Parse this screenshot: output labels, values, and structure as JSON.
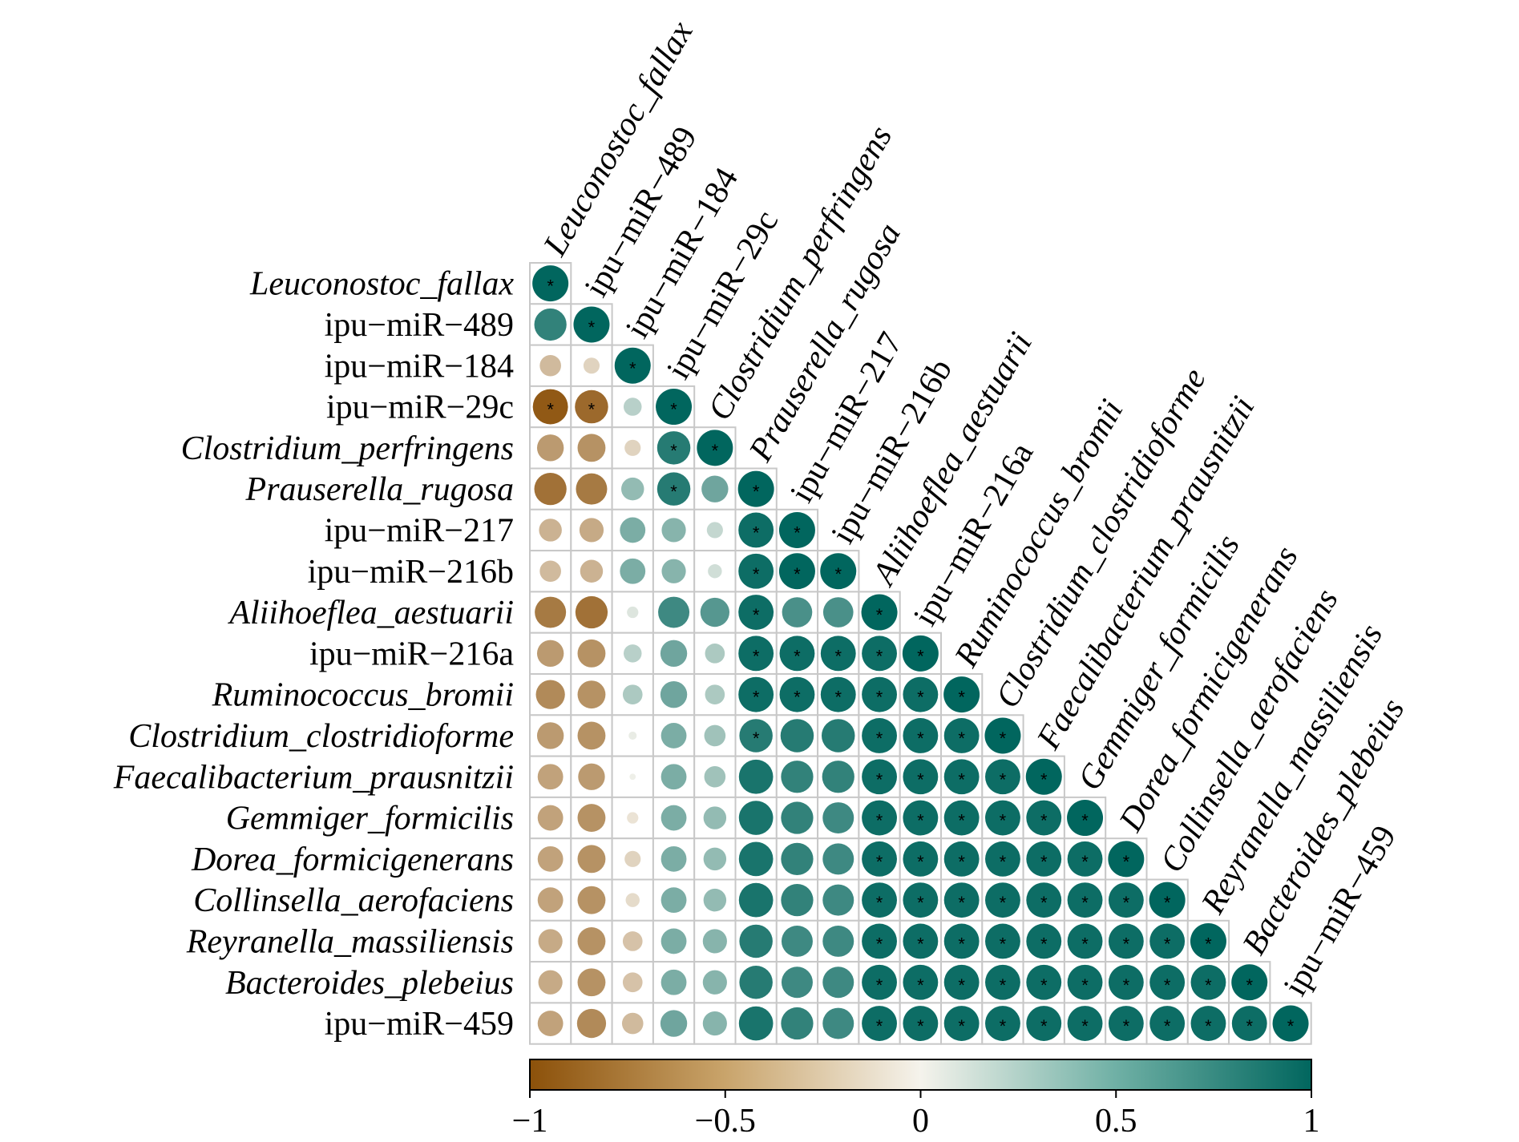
{
  "chart_data": {
    "type": "heatmap",
    "subtype": "lower-triangle correlation (circle size and color = r)",
    "variables": [
      {
        "name": "Leuconostoc_fallax",
        "italic": true
      },
      {
        "name": "ipu−miR−489",
        "italic": false
      },
      {
        "name": "ipu−miR−184",
        "italic": false
      },
      {
        "name": "ipu−miR−29c",
        "italic": false
      },
      {
        "name": "Clostridium_perfringens",
        "italic": true
      },
      {
        "name": "Prauserella_rugosa",
        "italic": true
      },
      {
        "name": "ipu−miR−217",
        "italic": false
      },
      {
        "name": "ipu−miR−216b",
        "italic": false
      },
      {
        "name": "Aliihoeflea_aestuarii",
        "italic": true
      },
      {
        "name": "ipu−miR−216a",
        "italic": false
      },
      {
        "name": "Ruminococcus_bromii",
        "italic": true
      },
      {
        "name": "Clostridium_clostridioforme",
        "italic": true
      },
      {
        "name": "Faecalibacterium_prausnitzii",
        "italic": true
      },
      {
        "name": "Gemmiger_formicilis",
        "italic": true
      },
      {
        "name": "Dorea_formicigenerans",
        "italic": true
      },
      {
        "name": "Collinsella_aerofaciens",
        "italic": true
      },
      {
        "name": "Reyranella_massiliensis",
        "italic": true
      },
      {
        "name": "Bacteroides_plebeius",
        "italic": true
      },
      {
        "name": "ipu−miR−459",
        "italic": false
      }
    ],
    "correlations": [
      [
        1.0
      ],
      [
        0.8,
        1.0
      ],
      [
        -0.35,
        -0.2,
        1.0
      ],
      [
        -0.95,
        -0.85,
        0.25,
        1.0
      ],
      [
        -0.55,
        -0.6,
        -0.2,
        0.85,
        1.0
      ],
      [
        -0.8,
        -0.75,
        0.4,
        0.85,
        0.55,
        1.0
      ],
      [
        -0.4,
        -0.45,
        0.5,
        0.45,
        0.2,
        0.95,
        1.0
      ],
      [
        -0.35,
        -0.4,
        0.5,
        0.45,
        0.15,
        0.95,
        1.0,
        1.0
      ],
      [
        -0.75,
        -0.8,
        0.1,
        0.75,
        0.65,
        0.95,
        0.7,
        0.7,
        1.0
      ],
      [
        -0.55,
        -0.6,
        0.25,
        0.55,
        0.3,
        0.95,
        0.95,
        0.95,
        0.95,
        1.0
      ],
      [
        -0.65,
        -0.6,
        0.3,
        0.55,
        0.3,
        0.95,
        0.95,
        0.95,
        0.95,
        0.95,
        1.0
      ],
      [
        -0.55,
        -0.6,
        0.05,
        0.5,
        0.35,
        0.85,
        0.85,
        0.85,
        0.95,
        0.95,
        0.95,
        1.0
      ],
      [
        -0.5,
        -0.55,
        0.03,
        0.5,
        0.35,
        0.9,
        0.8,
        0.8,
        0.95,
        0.95,
        0.95,
        0.95,
        1.0
      ],
      [
        -0.5,
        -0.6,
        -0.1,
        0.5,
        0.4,
        0.9,
        0.8,
        0.75,
        0.95,
        0.95,
        0.95,
        0.95,
        0.95,
        1.0
      ],
      [
        -0.5,
        -0.6,
        -0.2,
        0.5,
        0.4,
        0.9,
        0.8,
        0.75,
        0.95,
        0.95,
        0.95,
        0.95,
        0.95,
        0.95,
        1.0
      ],
      [
        -0.5,
        -0.6,
        -0.15,
        0.5,
        0.4,
        0.9,
        0.8,
        0.75,
        0.95,
        0.95,
        0.95,
        0.95,
        0.95,
        0.95,
        0.95,
        1.0
      ],
      [
        -0.45,
        -0.6,
        -0.3,
        0.5,
        0.45,
        0.85,
        0.75,
        0.75,
        0.95,
        0.95,
        0.95,
        0.95,
        0.95,
        0.95,
        0.95,
        0.95,
        1.0
      ],
      [
        -0.45,
        -0.6,
        -0.3,
        0.5,
        0.45,
        0.85,
        0.75,
        0.75,
        0.95,
        0.95,
        0.95,
        0.95,
        0.95,
        0.95,
        0.95,
        0.95,
        0.95,
        1.0
      ],
      [
        -0.5,
        -0.65,
        -0.35,
        0.55,
        0.45,
        0.9,
        0.8,
        0.75,
        0.95,
        0.95,
        0.95,
        0.95,
        0.95,
        0.95,
        0.95,
        0.95,
        0.95,
        0.95,
        1.0
      ]
    ],
    "significant": [
      [
        1
      ],
      [
        0,
        1
      ],
      [
        0,
        0,
        1
      ],
      [
        1,
        1,
        0,
        1
      ],
      [
        0,
        0,
        0,
        1,
        1
      ],
      [
        0,
        0,
        0,
        1,
        0,
        1
      ],
      [
        0,
        0,
        0,
        0,
        0,
        1,
        1
      ],
      [
        0,
        0,
        0,
        0,
        0,
        1,
        1,
        1
      ],
      [
        0,
        0,
        0,
        0,
        0,
        1,
        0,
        0,
        1
      ],
      [
        0,
        0,
        0,
        0,
        0,
        1,
        1,
        1,
        1,
        1
      ],
      [
        0,
        0,
        0,
        0,
        0,
        1,
        1,
        1,
        1,
        1,
        1
      ],
      [
        0,
        0,
        0,
        0,
        0,
        1,
        0,
        0,
        1,
        1,
        1,
        1
      ],
      [
        0,
        0,
        0,
        0,
        0,
        0,
        0,
        0,
        1,
        1,
        1,
        1,
        1
      ],
      [
        0,
        0,
        0,
        0,
        0,
        0,
        0,
        0,
        1,
        1,
        1,
        1,
        1,
        1
      ],
      [
        0,
        0,
        0,
        0,
        0,
        0,
        0,
        0,
        1,
        1,
        1,
        1,
        1,
        1,
        1
      ],
      [
        0,
        0,
        0,
        0,
        0,
        0,
        0,
        0,
        1,
        1,
        1,
        1,
        1,
        1,
        1,
        1
      ],
      [
        0,
        0,
        0,
        0,
        0,
        0,
        0,
        0,
        1,
        1,
        1,
        1,
        1,
        1,
        1,
        1,
        1
      ],
      [
        0,
        0,
        0,
        0,
        0,
        0,
        0,
        0,
        1,
        1,
        1,
        1,
        1,
        1,
        1,
        1,
        1,
        1
      ],
      [
        0,
        0,
        0,
        0,
        0,
        0,
        0,
        0,
        1,
        1,
        1,
        1,
        1,
        1,
        1,
        1,
        1,
        1,
        1
      ]
    ],
    "significance_marker": "*",
    "colorbar": {
      "range": [
        -1,
        1
      ],
      "ticks": [
        -1,
        -0.5,
        0,
        0.5,
        1
      ],
      "tick_labels": [
        "−1",
        "−0.5",
        "0",
        "0.5",
        "1"
      ],
      "placement": "bottom"
    },
    "colors": {
      "negative": "#8c510a",
      "neutral": "#f5f3ec",
      "positive": "#01665e",
      "grid": "#c8c8c8"
    }
  }
}
